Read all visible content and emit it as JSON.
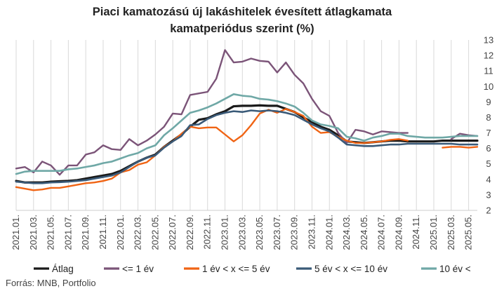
{
  "chart_data": {
    "type": "line",
    "title": "Piaci kamatozású új lakáshitelek évesített átlagkamata",
    "subtitle": "kamatperiódus szerint (%)",
    "xlabel": "",
    "ylabel": "",
    "ylim": [
      2,
      13
    ],
    "yticks": [
      "2",
      "3",
      "4",
      "5",
      "6",
      "7",
      "8",
      "9",
      "10",
      "11",
      "12",
      "13"
    ],
    "y_axis_position": "right",
    "grid": "vertical",
    "legend_position": "bottom",
    "source": "Forrás: MNB, Portfolio",
    "categories": [
      "2021.01.",
      "2021.02.",
      "2021.03.",
      "2021.04.",
      "2021.05.",
      "2021.06.",
      "2021.07.",
      "2021.08.",
      "2021.09.",
      "2021.10.",
      "2021.11.",
      "2021.12.",
      "2022.01.",
      "2022.02.",
      "2022.03.",
      "2022.04.",
      "2022.05.",
      "2022.06.",
      "2022.07.",
      "2022.08.",
      "2022.09.",
      "2022.10.",
      "2022.11.",
      "2022.12.",
      "2023.01.",
      "2023.02.",
      "2023.03.",
      "2023.04.",
      "2023.05.",
      "2023.06.",
      "2023.07.",
      "2023.08.",
      "2023.09.",
      "2023.10.",
      "2023.11.",
      "2023.12.",
      "2024.01.",
      "2024.02.",
      "2024.03.",
      "2024.04.",
      "2024.05.",
      "2024.06.",
      "2024.07.",
      "2024.08.",
      "2024.09.",
      "2024.10.",
      "2024.11.",
      "2024.12.",
      "2025.01.",
      "2025.02.",
      "2025.03.",
      "2025.04.",
      "2025.05.",
      "2025.06."
    ],
    "xtick_labels": [
      "2021.01.",
      "2021.03.",
      "2021.05.",
      "2021.07.",
      "2021.09.",
      "2021.11.",
      "2022.01.",
      "2022.03.",
      "2022.05.",
      "2022.07.",
      "2022.09.",
      "2022.11.",
      "2023.01.",
      "2023.03.",
      "2023.05.",
      "2023.07.",
      "2023.09.",
      "2023.11.",
      "2024.01.",
      "2024.03.",
      "2024.05.",
      "2024.07.",
      "2024.09.",
      "2024.11.",
      "2025.01.",
      "2025.03.",
      "2025.05."
    ],
    "series": [
      {
        "name": "Átlag",
        "color": "#1a1a1a",
        "width": 3.2,
        "values": [
          3.9,
          3.8,
          3.8,
          3.8,
          3.85,
          3.88,
          3.9,
          3.95,
          4.05,
          4.15,
          4.25,
          4.35,
          4.55,
          4.85,
          5.15,
          5.4,
          5.6,
          6.1,
          6.5,
          6.9,
          7.4,
          7.85,
          7.95,
          8.2,
          8.4,
          8.72,
          8.75,
          8.75,
          8.78,
          8.75,
          8.75,
          8.55,
          8.35,
          8.0,
          7.7,
          7.4,
          7.2,
          6.85,
          6.45,
          6.4,
          6.35,
          6.4,
          6.45,
          6.5,
          6.5,
          6.45,
          6.45,
          6.45,
          6.45,
          6.5,
          6.5,
          6.5,
          6.5,
          6.5
        ]
      },
      {
        "name": "<= 1 év",
        "color": "#7b5478",
        "width": 2.4,
        "values": [
          4.7,
          4.8,
          4.45,
          5.15,
          4.9,
          4.3,
          4.9,
          4.9,
          5.6,
          5.75,
          6.2,
          5.95,
          5.9,
          6.6,
          6.2,
          6.5,
          6.9,
          7.4,
          8.25,
          8.2,
          9.45,
          9.55,
          9.65,
          10.5,
          12.35,
          11.55,
          11.6,
          11.8,
          11.65,
          11.6,
          10.9,
          11.55,
          10.75,
          10.2,
          9.2,
          8.4,
          8.1,
          7.0,
          6.35,
          7.2,
          7.1,
          6.9,
          7.1,
          7.05,
          7.0,
          7.0,
          null,
          null,
          null,
          null,
          6.6,
          6.95,
          6.85,
          6.8
        ]
      },
      {
        "name": "1 év < x <= 5 év",
        "color": "#f06414",
        "width": 2.4,
        "values": [
          3.5,
          3.4,
          3.3,
          3.35,
          3.45,
          3.45,
          3.55,
          3.65,
          3.75,
          3.8,
          3.9,
          4.05,
          4.45,
          4.6,
          4.95,
          5.1,
          5.55,
          6.1,
          6.45,
          6.95,
          7.4,
          7.3,
          7.35,
          7.35,
          6.9,
          6.45,
          6.85,
          7.5,
          8.25,
          8.5,
          8.3,
          8.55,
          8.35,
          8.1,
          7.4,
          7.0,
          7.05,
          6.75,
          6.5,
          6.35,
          6.35,
          6.4,
          6.45,
          6.55,
          6.6,
          6.5,
          null,
          null,
          null,
          6.05,
          6.1,
          6.1,
          6.05,
          6.1
        ]
      },
      {
        "name": "5 év  < x <=  10 év",
        "color": "#3a5a78",
        "width": 2.6,
        "values": [
          3.85,
          3.8,
          3.75,
          3.75,
          3.8,
          3.82,
          3.85,
          3.9,
          3.95,
          4.05,
          4.15,
          4.25,
          4.45,
          4.8,
          5.15,
          5.4,
          5.55,
          6.05,
          6.45,
          6.8,
          7.5,
          7.55,
          7.9,
          8.15,
          8.3,
          8.4,
          8.35,
          8.45,
          8.4,
          8.45,
          8.4,
          8.3,
          8.15,
          7.85,
          7.55,
          7.3,
          7.1,
          6.7,
          6.25,
          6.2,
          6.15,
          6.15,
          6.2,
          6.25,
          6.25,
          6.3,
          6.3,
          6.3,
          6.3,
          6.3,
          6.3,
          6.25,
          6.25,
          6.25
        ]
      },
      {
        "name": "10 év <",
        "color": "#6fa8a6",
        "width": 2.6,
        "values": [
          4.35,
          4.5,
          4.55,
          4.55,
          4.55,
          4.55,
          4.65,
          4.7,
          4.8,
          4.9,
          5.05,
          5.15,
          5.35,
          5.55,
          5.7,
          6.0,
          6.2,
          6.85,
          7.3,
          7.8,
          8.3,
          8.45,
          8.65,
          8.9,
          9.2,
          9.5,
          9.4,
          9.35,
          9.2,
          9.15,
          9.05,
          8.9,
          8.7,
          8.3,
          7.8,
          7.55,
          7.45,
          7.3,
          6.75,
          6.65,
          6.5,
          6.7,
          6.8,
          6.95,
          6.95,
          6.8,
          6.75,
          6.7,
          6.7,
          6.7,
          6.75,
          6.8,
          6.8,
          6.8
        ]
      }
    ]
  }
}
